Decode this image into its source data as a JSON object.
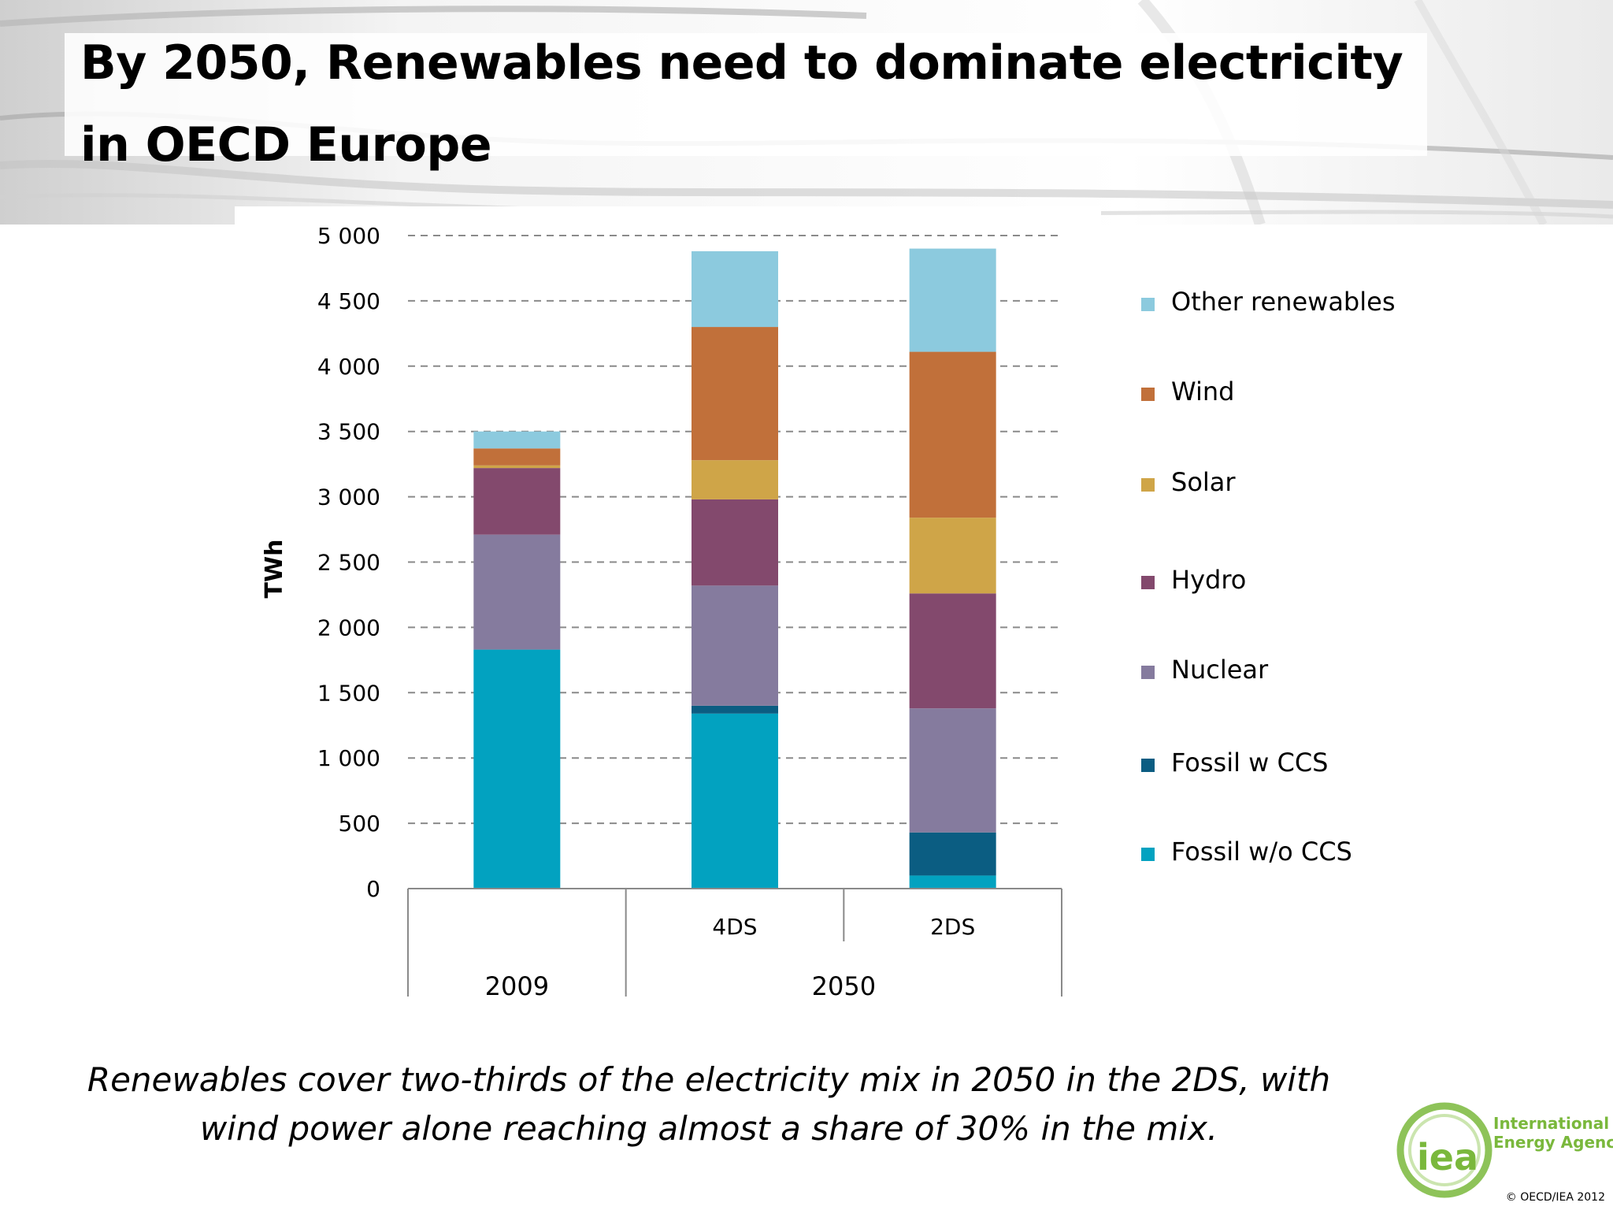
{
  "slide": {
    "title": "By 2050, Renewables need to dominate electricity in OECD Europe",
    "caption": "Renewables cover two-thirds of the electricity mix in 2050 in the 2DS, with wind power alone reaching almost a share of 30% in the mix.",
    "copyright": "© OECD/IEA 2012",
    "logo": {
      "mark": "iea",
      "name_line1": "International",
      "name_line2": "Energy Agency",
      "color_green": "#7ab83c",
      "color_blue": "#0f4c8a"
    }
  },
  "chart_data": {
    "type": "bar",
    "stacked": true,
    "ylabel": "TWh",
    "ylim": [
      0,
      5000
    ],
    "yticks": [
      "0",
      "500",
      "1 000",
      "1 500",
      "2 000",
      "2 500",
      "3 000",
      "3 500",
      "4 000",
      "4 500",
      "5 000"
    ],
    "ytick_values": [
      0,
      500,
      1000,
      1500,
      2000,
      2500,
      3000,
      3500,
      4000,
      4500,
      5000
    ],
    "grid": "dashed-horizontal",
    "legend_position": "right",
    "categories": [
      "",
      "4DS",
      "2DS"
    ],
    "group_labels": [
      "2009",
      "2050"
    ],
    "groups": [
      [
        0
      ],
      [
        1,
        2
      ]
    ],
    "series": [
      {
        "name": "Fossil w/o CCS",
        "color": "#02a2c0",
        "values": [
          1830,
          1340,
          100
        ]
      },
      {
        "name": "Fossil w CCS",
        "color": "#0b5d82",
        "values": [
          0,
          60,
          330
        ]
      },
      {
        "name": "Nuclear",
        "color": "#857b9e",
        "values": [
          880,
          920,
          950
        ]
      },
      {
        "name": "Hydro",
        "color": "#83496d",
        "values": [
          510,
          660,
          880
        ]
      },
      {
        "name": "Solar",
        "color": "#cfa548",
        "values": [
          20,
          300,
          580
        ]
      },
      {
        "name": "Wind",
        "color": "#c1703a",
        "values": [
          130,
          1020,
          1270
        ]
      },
      {
        "name": "Other renewables",
        "color": "#8ccade",
        "values": [
          130,
          580,
          790
        ]
      }
    ]
  }
}
